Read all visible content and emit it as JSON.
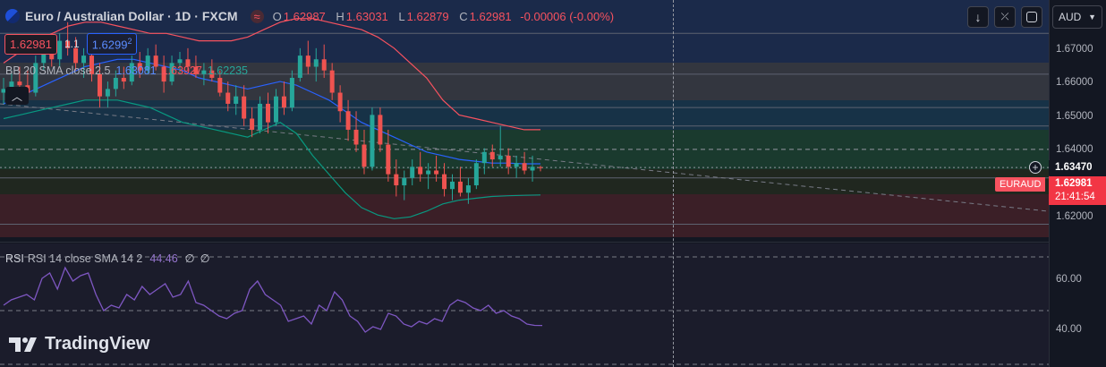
{
  "header": {
    "symbol_title": "Euro / Australian Dollar · 1D · FXCM",
    "ohlc": {
      "o_label": "O",
      "o_value": "1.62987",
      "h_label": "H",
      "h_value": "1.63031",
      "l_label": "L",
      "l_value": "1.62879",
      "c_label": "C",
      "c_value": "1.62981",
      "change": "-0.00006 (-0.00%)"
    },
    "bid": "1.62981",
    "spread": "1.1",
    "ask_main": "1.6299",
    "ask_sup": "2",
    "currency": "AUD"
  },
  "bb_legend": {
    "label": "BB 20 SMA close 2.5",
    "basis": "1.63081",
    "upper": "1.63927",
    "lower": "1.62235"
  },
  "rsi_legend": {
    "label": "RSI 14 close SMA 14 2",
    "value": "44.46",
    "v2": "∅",
    "v3": "∅"
  },
  "price_axis": {
    "ticks": [
      "1.67000",
      "1.66000",
      "1.65000",
      "1.64000",
      "1.62000"
    ],
    "crosshair_price": "1.63470",
    "last_price": "1.62981",
    "countdown": "21:41:54",
    "symbol_tag": "EURAUD"
  },
  "rsi_axis": {
    "ticks": [
      "60.00",
      "40.00"
    ]
  },
  "branding": {
    "logo_text": "TradingView"
  },
  "colors": {
    "bull": "#26a69a",
    "bear": "#ef5350",
    "bb_upper": "#f7525f",
    "bb_basis": "#2962ff",
    "bb_lower": "#089981",
    "rsi": "#7e57c2",
    "accent_blue": "#2962ff"
  },
  "chart_data": [
    {
      "type": "candlestick",
      "series": [
        {
          "name": "EURAUD",
          "candles": [
            [
              1.65,
              1.654,
              1.647,
              1.651
            ],
            [
              1.651,
              1.656,
              1.649,
              1.653
            ],
            [
              1.653,
              1.657,
              1.65,
              1.652
            ],
            [
              1.652,
              1.656,
              1.648,
              1.65
            ],
            [
              1.65,
              1.66,
              1.649,
              1.658
            ],
            [
              1.658,
              1.664,
              1.656,
              1.661
            ],
            [
              1.661,
              1.665,
              1.657,
              1.659
            ],
            [
              1.659,
              1.666,
              1.657,
              1.664
            ],
            [
              1.664,
              1.669,
              1.66,
              1.662
            ],
            [
              1.662,
              1.665,
              1.656,
              1.658
            ],
            [
              1.658,
              1.662,
              1.654,
              1.66
            ],
            [
              1.66,
              1.663,
              1.653,
              1.655
            ],
            [
              1.655,
              1.658,
              1.646,
              1.649
            ],
            [
              1.649,
              1.653,
              1.646,
              1.651
            ],
            [
              1.651,
              1.656,
              1.649,
              1.654
            ],
            [
              1.654,
              1.657,
              1.651,
              1.653
            ],
            [
              1.653,
              1.66,
              1.652,
              1.658
            ],
            [
              1.658,
              1.661,
              1.654,
              1.656
            ],
            [
              1.656,
              1.662,
              1.655,
              1.66
            ],
            [
              1.66,
              1.663,
              1.656,
              1.657
            ],
            [
              1.657,
              1.66,
              1.65,
              1.653
            ],
            [
              1.653,
              1.66,
              1.652,
              1.658
            ],
            [
              1.658,
              1.661,
              1.655,
              1.659
            ],
            [
              1.659,
              1.662,
              1.656,
              1.657
            ],
            [
              1.657,
              1.66,
              1.654,
              1.655
            ],
            [
              1.655,
              1.658,
              1.652,
              1.656
            ],
            [
              1.656,
              1.659,
              1.653,
              1.654
            ],
            [
              1.654,
              1.656,
              1.649,
              1.65
            ],
            [
              1.65,
              1.653,
              1.645,
              1.647
            ],
            [
              1.647,
              1.652,
              1.644,
              1.649
            ],
            [
              1.649,
              1.652,
              1.641,
              1.643
            ],
            [
              1.643,
              1.646,
              1.638,
              1.64
            ],
            [
              1.64,
              1.649,
              1.639,
              1.647
            ],
            [
              1.647,
              1.65,
              1.639,
              1.642
            ],
            [
              1.642,
              1.651,
              1.641,
              1.649
            ],
            [
              1.649,
              1.653,
              1.644,
              1.646
            ],
            [
              1.646,
              1.656,
              1.645,
              1.654
            ],
            [
              1.654,
              1.662,
              1.653,
              1.66
            ],
            [
              1.66,
              1.664,
              1.655,
              1.657
            ],
            [
              1.657,
              1.662,
              1.653,
              1.659
            ],
            [
              1.659,
              1.663,
              1.654,
              1.656
            ],
            [
              1.656,
              1.658,
              1.648,
              1.65
            ],
            [
              1.65,
              1.652,
              1.642,
              1.645
            ],
            [
              1.645,
              1.648,
              1.637,
              1.64
            ],
            [
              1.64,
              1.645,
              1.634,
              1.636
            ],
            [
              1.636,
              1.64,
              1.628,
              1.63
            ],
            [
              1.63,
              1.646,
              1.629,
              1.644
            ],
            [
              1.644,
              1.646,
              1.634,
              1.636
            ],
            [
              1.636,
              1.64,
              1.626,
              1.628
            ],
            [
              1.628,
              1.632,
              1.622,
              1.625
            ],
            [
              1.625,
              1.629,
              1.621,
              1.627
            ],
            [
              1.627,
              1.632,
              1.625,
              1.63
            ],
            [
              1.63,
              1.634,
              1.626,
              1.628
            ],
            [
              1.628,
              1.631,
              1.624,
              1.629
            ],
            [
              1.629,
              1.633,
              1.626,
              1.628
            ],
            [
              1.628,
              1.631,
              1.622,
              1.624
            ],
            [
              1.624,
              1.628,
              1.621,
              1.626
            ],
            [
              1.626,
              1.63,
              1.622,
              1.623
            ],
            [
              1.623,
              1.627,
              1.62,
              1.625
            ],
            [
              1.625,
              1.632,
              1.624,
              1.631
            ],
            [
              1.631,
              1.635,
              1.628,
              1.634
            ],
            [
              1.634,
              1.636,
              1.63,
              1.632
            ],
            [
              1.632,
              1.641,
              1.63,
              1.633
            ],
            [
              1.633,
              1.635,
              1.628,
              1.63
            ],
            [
              1.63,
              1.633,
              1.627,
              1.631
            ],
            [
              1.631,
              1.634,
              1.628,
              1.629
            ],
            [
              1.629,
              1.633,
              1.626,
              1.63
            ],
            [
              1.6299,
              1.6303,
              1.6288,
              1.6298
            ]
          ]
        },
        {
          "name": "BB upper",
          "values": [
            1.658,
            1.661,
            1.664,
            1.666,
            1.668,
            1.669,
            1.669,
            1.668,
            1.667,
            1.666,
            1.666,
            1.665,
            1.664,
            1.664,
            1.664,
            1.665,
            1.667,
            1.669,
            1.67,
            1.67,
            1.669,
            1.668,
            1.667,
            1.665,
            1.662,
            1.658,
            1.654,
            1.648,
            1.644,
            1.643,
            1.642,
            1.641,
            1.64,
            1.64
          ]
        },
        {
          "name": "BB basis",
          "values": [
            1.647,
            1.649,
            1.651,
            1.653,
            1.655,
            1.657,
            1.658,
            1.659,
            1.659,
            1.658,
            1.657,
            1.656,
            1.654,
            1.653,
            1.652,
            1.651,
            1.652,
            1.653,
            1.652,
            1.65,
            1.648,
            1.645,
            1.642,
            1.64,
            1.638,
            1.636,
            1.634,
            1.633,
            1.632,
            1.6315,
            1.631,
            1.631,
            1.6308,
            1.6308
          ]
        },
        {
          "name": "BB lower",
          "values": [
            1.643,
            1.644,
            1.645,
            1.646,
            1.647,
            1.648,
            1.648,
            1.648,
            1.647,
            1.646,
            1.644,
            1.642,
            1.641,
            1.64,
            1.639,
            1.638,
            1.64,
            1.642,
            1.639,
            1.633,
            1.628,
            1.623,
            1.619,
            1.617,
            1.616,
            1.6165,
            1.618,
            1.62,
            1.621,
            1.6215,
            1.622,
            1.6222,
            1.6223,
            1.6224
          ]
        },
        {
          "name": "trend",
          "values": [
            1.647,
            1.618
          ]
        }
      ],
      "levels": [
        1.666,
        1.655,
        1.646,
        1.641,
        1.6347,
        1.6298,
        1.627,
        1.6145
      ],
      "ylim": [
        1.6098,
        1.675
      ],
      "ticks": [
        1.67,
        1.66,
        1.65,
        1.64,
        1.62
      ]
    },
    {
      "type": "line",
      "series": [
        {
          "name": "RSI",
          "values": [
            52,
            54,
            55,
            56,
            54,
            62,
            64,
            58,
            66,
            61,
            63,
            64,
            56,
            50,
            52,
            51,
            56,
            54,
            59,
            56,
            58,
            60,
            55,
            56,
            61,
            53,
            52,
            50,
            48,
            47,
            49,
            50,
            58,
            61,
            56,
            54,
            52,
            46,
            47,
            48,
            45,
            52,
            50,
            57,
            54,
            48,
            46,
            42,
            44,
            43,
            49,
            48,
            45,
            44,
            46,
            45,
            47,
            46,
            52,
            54,
            53,
            51,
            50,
            52,
            49,
            50,
            48,
            47,
            45,
            44.5,
            44.46
          ]
        }
      ],
      "ylim": [
        29,
        75
      ],
      "ticks": [
        60,
        40
      ],
      "guides": [
        70,
        50,
        30
      ]
    }
  ]
}
